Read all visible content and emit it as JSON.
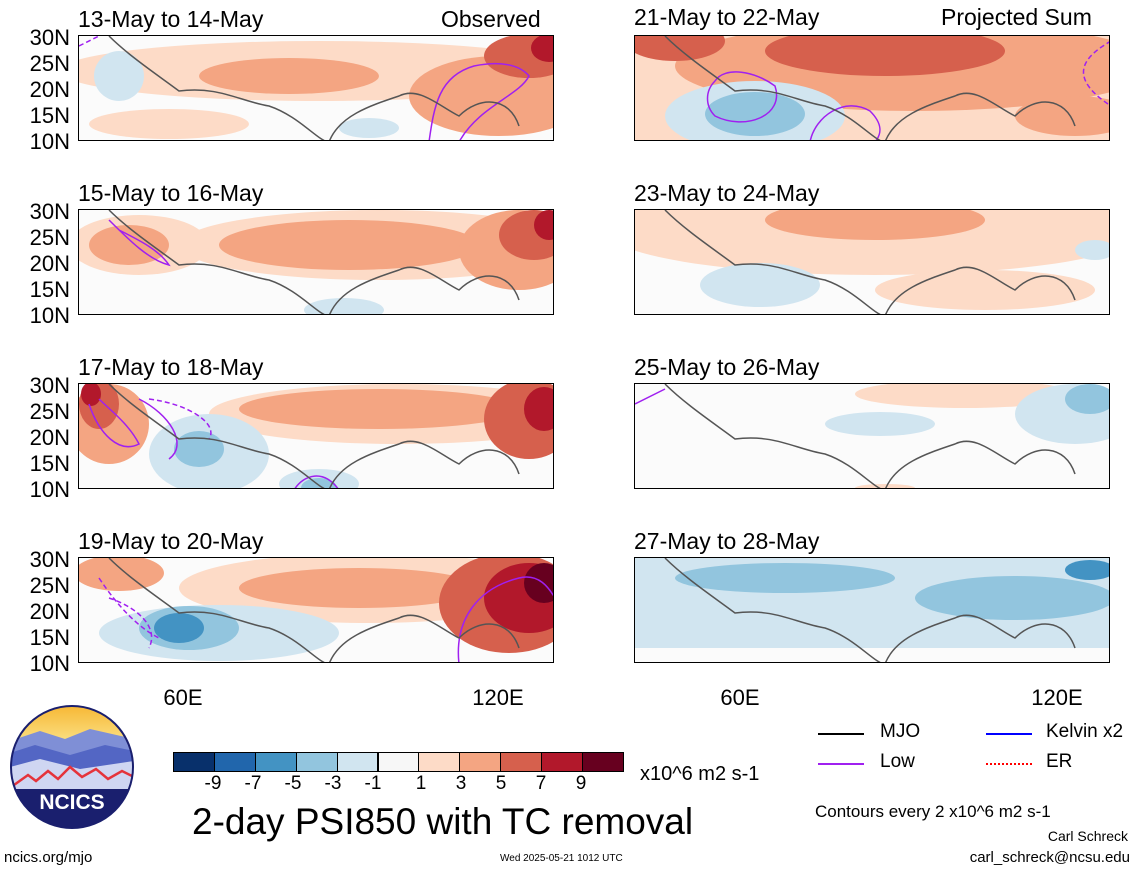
{
  "figure": {
    "title": "2-day PSI850 with TC removal",
    "unit": "x10^6 m2 s-1",
    "left_column_label": "Observed",
    "right_column_label": "Projected Sum",
    "contour_note": "Contours every 2 x10^6 m2 s-1",
    "footer_left": "ncics.org/mjo",
    "footer_center": "Wed 2025-05-21 1012 UTC",
    "author": "Carl Schreck",
    "email": "carl_schreck@ncsu.edu",
    "logo_text": "NCICS"
  },
  "axes": {
    "y_ticks": [
      "30N",
      "25N",
      "20N",
      "15N",
      "10N"
    ],
    "x_ticks": [
      "60E",
      "120E"
    ]
  },
  "panels_left": [
    {
      "period": "13-May to 14-May"
    },
    {
      "period": "15-May to 16-May"
    },
    {
      "period": "17-May to 18-May"
    },
    {
      "period": "19-May to 20-May"
    }
  ],
  "panels_right": [
    {
      "period": "21-May to 22-May"
    },
    {
      "period": "23-May to 24-May"
    },
    {
      "period": "25-May to 26-May"
    },
    {
      "period": "27-May to 28-May"
    }
  ],
  "colorbar": {
    "labels": [
      "-9",
      "-7",
      "-5",
      "-3",
      "-1",
      "1",
      "3",
      "5",
      "7",
      "9"
    ],
    "colors": [
      "#08306b",
      "#2166ac",
      "#4393c3",
      "#92c5de",
      "#d1e5f0",
      "#f7f7f7",
      "#fddbc7",
      "#f4a582",
      "#d6604d",
      "#b2182b",
      "#67001f"
    ]
  },
  "legend": [
    {
      "label": "MJO",
      "color": "#000000"
    },
    {
      "label": "Kelvin x2",
      "color": "#0000ff"
    },
    {
      "label": "Low",
      "color": "#a020f0"
    },
    {
      "label": "ER",
      "color": "#ff0000"
    }
  ]
}
